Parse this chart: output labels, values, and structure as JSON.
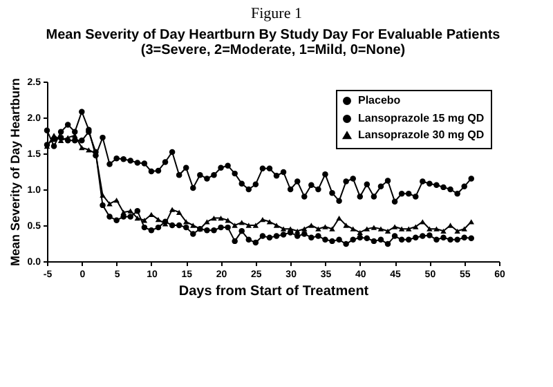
{
  "chart_data": {
    "type": "line",
    "title": "Mean Severity of Day Heartburn By Study Day For Evaluable Patients",
    "subtitle": "(3=Severe, 2=Moderate, 1=Mild, 0=None)",
    "annotations": [
      "Figure 1"
    ],
    "xlabel": "Days from Start of Treatment",
    "ylabel": "Mean Severity of Day Heartburn",
    "x": [
      -5,
      -4,
      -3,
      -2,
      -1,
      0,
      1,
      2,
      3,
      4,
      5,
      6,
      7,
      8,
      9,
      10,
      11,
      12,
      13,
      14,
      15,
      16,
      17,
      18,
      19,
      20,
      21,
      22,
      23,
      24,
      25,
      26,
      27,
      28,
      29,
      30,
      31,
      32,
      33,
      34,
      35,
      36,
      37,
      38,
      39,
      40,
      41,
      42,
      43,
      44,
      45,
      46,
      47,
      48,
      49,
      50,
      51,
      52,
      53,
      54,
      55,
      56
    ],
    "series": [
      {
        "name": "Placebo",
        "color": "#000000",
        "marker": "circle",
        "values": [
          1.82,
          1.6,
          1.8,
          1.9,
          1.8,
          2.08,
          1.83,
          1.47,
          1.72,
          1.35,
          1.43,
          1.42,
          1.4,
          1.37,
          1.36,
          1.25,
          1.26,
          1.38,
          1.52,
          1.2,
          1.3,
          1.02,
          1.2,
          1.15,
          1.2,
          1.3,
          1.33,
          1.22,
          1.08,
          1.0,
          1.07,
          1.29,
          1.29,
          1.19,
          1.24,
          1.0,
          1.11,
          0.9,
          1.06,
          1.0,
          1.21,
          0.95,
          0.84,
          1.11,
          1.15,
          0.9,
          1.07,
          0.9,
          1.04,
          1.12,
          0.83,
          0.94,
          0.94,
          0.9,
          1.11,
          1.08,
          1.06,
          1.03,
          1.0,
          0.94,
          1.04,
          1.15
        ]
      },
      {
        "name": "Lansoprazole 15 mg QD",
        "color": "#000000",
        "marker": "circle",
        "values": [
          1.62,
          1.7,
          1.72,
          1.68,
          1.68,
          1.68,
          1.8,
          1.52,
          0.78,
          0.62,
          0.57,
          0.62,
          0.62,
          0.7,
          0.47,
          0.43,
          0.47,
          0.55,
          0.5,
          0.5,
          0.47,
          0.38,
          0.45,
          0.43,
          0.43,
          0.47,
          0.47,
          0.28,
          0.42,
          0.3,
          0.26,
          0.35,
          0.33,
          0.35,
          0.37,
          0.4,
          0.35,
          0.38,
          0.33,
          0.35,
          0.3,
          0.28,
          0.3,
          0.24,
          0.3,
          0.33,
          0.32,
          0.28,
          0.3,
          0.24,
          0.35,
          0.3,
          0.3,
          0.33,
          0.35,
          0.36,
          0.3,
          0.33,
          0.3,
          0.3,
          0.33,
          0.32
        ]
      },
      {
        "name": "Lansoprazole 30 mg QD",
        "color": "#000000",
        "marker": "triangle",
        "values": [
          1.6,
          1.75,
          1.68,
          1.72,
          1.75,
          1.58,
          1.55,
          1.5,
          0.92,
          0.8,
          0.85,
          0.68,
          0.7,
          0.6,
          0.57,
          0.65,
          0.58,
          0.52,
          0.72,
          0.68,
          0.55,
          0.5,
          0.45,
          0.55,
          0.6,
          0.6,
          0.57,
          0.5,
          0.54,
          0.5,
          0.5,
          0.58,
          0.55,
          0.5,
          0.45,
          0.45,
          0.42,
          0.45,
          0.5,
          0.45,
          0.48,
          0.45,
          0.6,
          0.5,
          0.45,
          0.4,
          0.45,
          0.47,
          0.45,
          0.42,
          0.48,
          0.45,
          0.45,
          0.48,
          0.55,
          0.45,
          0.45,
          0.42,
          0.5,
          0.42,
          0.45,
          0.55
        ]
      }
    ],
    "xlim": [
      -5,
      60
    ],
    "xticks": [
      -5,
      0,
      5,
      10,
      15,
      20,
      25,
      30,
      35,
      40,
      45,
      50,
      55,
      60
    ],
    "ylim": [
      0,
      2.5
    ],
    "yticks": [
      {
        "value": 0,
        "label": "0.0"
      },
      {
        "value": 0.5,
        "label": "0.5"
      },
      {
        "value": 1,
        "label": "1.0"
      },
      {
        "value": 1.5,
        "label": "1.5"
      },
      {
        "value": 2,
        "label": "2.0"
      },
      {
        "value": 2.5,
        "label": "2.5"
      }
    ],
    "legend": "top right",
    "grid": false
  }
}
